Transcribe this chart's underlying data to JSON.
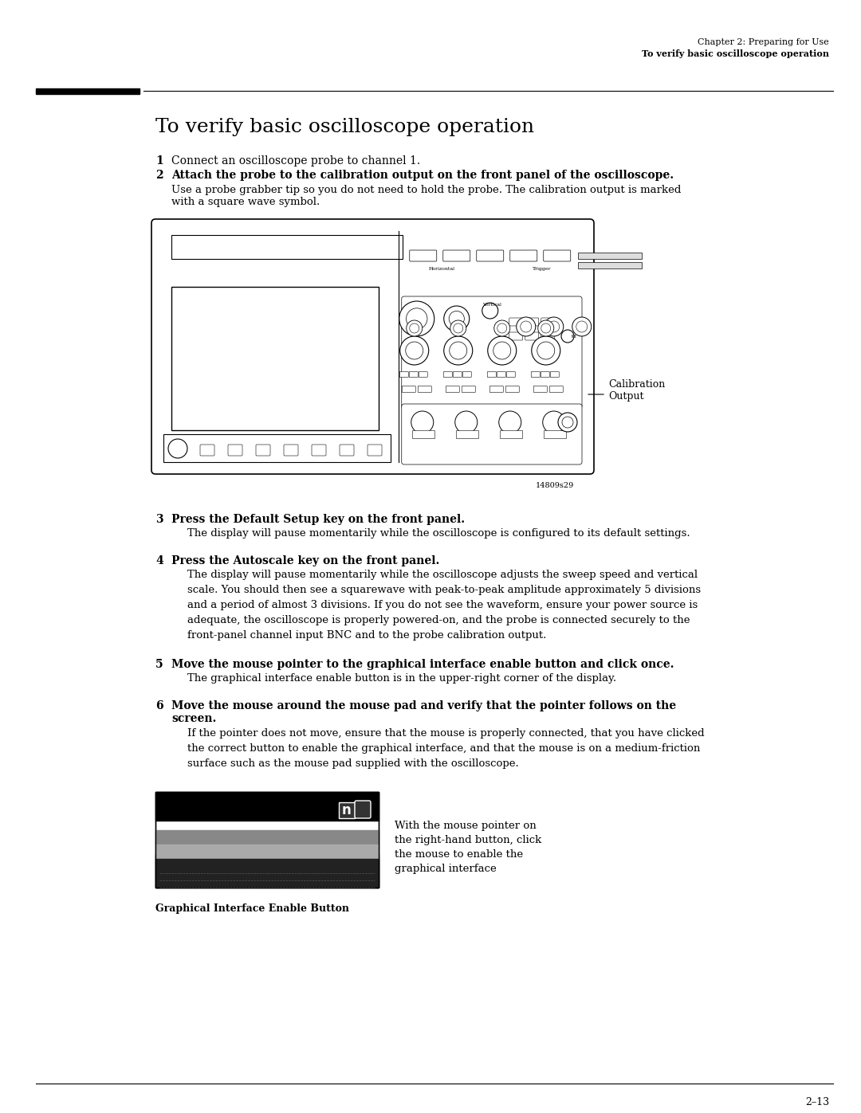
{
  "bg_color": "#ffffff",
  "header_line1": "Chapter 2: Preparing for Use",
  "header_line2": "To verify basic oscilloscope operation",
  "section_title": "To verify basic oscilloscope operation",
  "step1_num": "1",
  "step1_bold": false,
  "step1_text": "Connect an oscilloscope probe to channel 1.",
  "step2_num": "2",
  "step2_bold": true,
  "step2_text": "Attach the probe to the calibration output on the front panel of the oscilloscope.",
  "step2_sub": "Use a probe grabber tip so you do not need to hold the probe. The calibration output is marked\nwith a square wave symbol.",
  "calib_label": "Calibration\nOutput",
  "fig_label": "14809s29",
  "step3_num": "3",
  "step3_bold": true,
  "step3_text": "Press the Default Setup key on the front panel.",
  "step3_sub": "The display will pause momentarily while the oscilloscope is configured to its default settings.",
  "step4_num": "4",
  "step4_bold": true,
  "step4_text": "Press the Autoscale key on the front panel.",
  "step4_sub": "The display will pause momentarily while the oscilloscope adjusts the sweep speed and vertical\nscale. You should then see a squarewave with peak-to-peak amplitude approximately 5 divisions\nand a period of almost 3 divisions. If you do not see the waveform, ensure your power source is\nadequate, the oscilloscope is properly powered-on, and the probe is connected securely to the\nfront-panel channel input BNC and to the probe calibration output.",
  "step5_num": "5",
  "step5_bold": true,
  "step5_text": "Move the mouse pointer to the graphical interface enable button and click once.",
  "step5_sub": "The graphical interface enable button is in the upper-right corner of the display.",
  "step6_num": "6",
  "step6_bold": true,
  "step6_text": "Move the mouse around the mouse pad and verify that the pointer follows on the\nscreen.",
  "step6_sub": "If the pointer does not move, ensure that the mouse is properly connected, that you have clicked\nthe correct button to enable the graphical interface, and that the mouse is on a medium-friction\nsurface such as the mouse pad supplied with the oscilloscope.",
  "fig2_caption": "Graphical Interface Enable Button",
  "fig2_note": "With the mouse pointer on\nthe right-hand button, click\nthe mouse to enable the\ngraphical interface",
  "page_number": "2–13",
  "font_color": "#000000",
  "header_font_size": 8,
  "title_font_size": 18,
  "step_num_font_size": 10,
  "step_text_font_size": 10,
  "body_font_size": 9,
  "caption_font_size": 9
}
